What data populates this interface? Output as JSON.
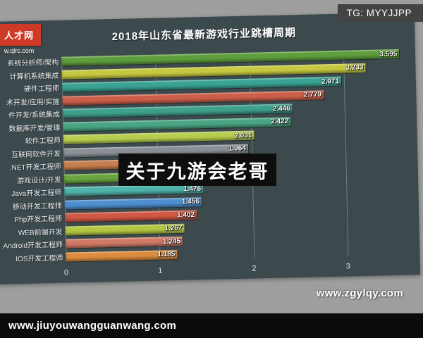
{
  "badges": {
    "tg": "TG: MYYJJPP"
  },
  "logo": {
    "name": "人才网",
    "url": "w.qlrc.com"
  },
  "caption_overlay": "关于九游会老哥",
  "watermark": "www.zgylqy.com",
  "bottom_bar": {
    "url": "www.jiuyouwangguanwang.com"
  },
  "chart_data": {
    "type": "bar",
    "orientation": "horizontal",
    "title": "2018年山东省最新游戏行业跳槽周期",
    "xlabel": "",
    "ylabel": "",
    "xlim": [
      0,
      3.66
    ],
    "xticks": [
      0,
      1,
      2,
      3
    ],
    "grid": "vertical",
    "legend": "none",
    "panel_background": "#3c4a4e",
    "categories": [
      "系统分析师/架构",
      "计算机系统集成",
      "硬件工程师",
      "术开发/应用/实施",
      "件开发/系统集成",
      "数据库开发/管理",
      "软件工程师",
      "互联网软件开发",
      ".NET开发工程师",
      "游戏设计/开发",
      "Java开发工程师",
      "移动开发工程师",
      "Php开发工程师",
      "WEB前端开发",
      "Android开发工程师",
      "IOS开发工程师"
    ],
    "values": [
      3.595,
      3.233,
      2.971,
      2.779,
      2.446,
      2.422,
      2.031,
      1.964,
      1.9,
      1.55,
      1.476,
      1.456,
      1.402,
      1.267,
      1.245,
      1.185
    ],
    "value_labels": [
      "3.595",
      "3.233",
      "2.971",
      "2.779",
      "2.446",
      "2.422",
      "2.031",
      "1.964",
      "",
      "",
      "1.476",
      "1.456",
      "1.402",
      "1.267",
      "1.245",
      "1.185"
    ],
    "bar_colors": [
      "#5f9e3d",
      "#c6c840",
      "#3aa393",
      "#cd5f4a",
      "#3fa08c",
      "#49a583",
      "#b7cd4e",
      "#8a9196",
      "#c77f4f",
      "#6aa53f",
      "#4fb3ab",
      "#4f8fd0",
      "#d05844",
      "#b3c742",
      "#d07a66",
      "#dd8c3e"
    ]
  }
}
